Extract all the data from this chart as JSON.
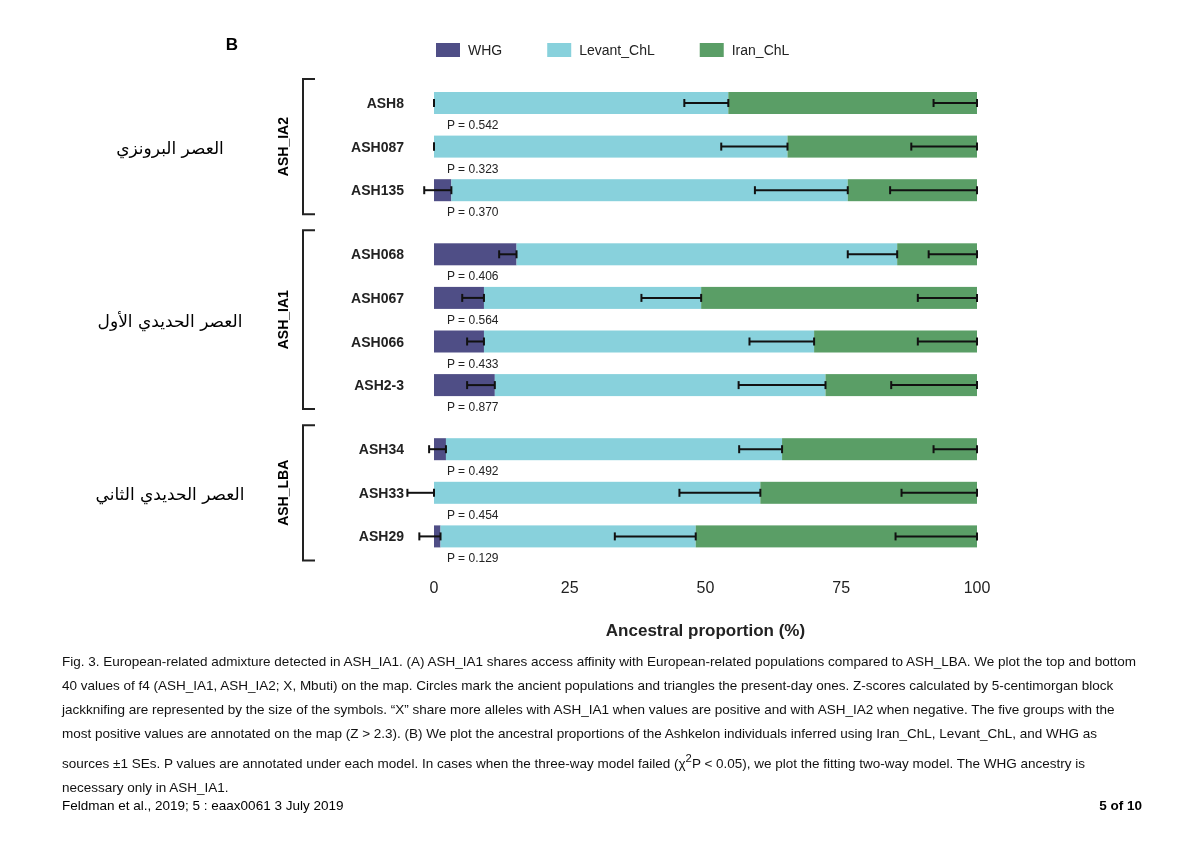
{
  "chart_data": {
    "type": "bar",
    "orientation": "horizontal",
    "stacked": true,
    "categories": [
      "ASH8",
      "ASH087",
      "ASH135",
      "ASH068",
      "ASH067",
      "ASH066",
      "ASH2-3",
      "ASH34",
      "ASH33",
      "ASH29"
    ],
    "series": [
      {
        "name": "WHG",
        "color": "#4f4e86",
        "values": [
          0,
          0,
          3.2,
          15.2,
          9.2,
          9.2,
          11.2,
          2.2,
          0,
          1.2
        ],
        "errors": [
          [
            0,
            0
          ],
          [
            0,
            0
          ],
          [
            -1.8,
            3.2
          ],
          [
            12.0,
            15.2
          ],
          [
            5.2,
            9.2
          ],
          [
            6.1,
            9.2
          ],
          [
            6.1,
            11.2
          ],
          [
            -0.9,
            2.2
          ],
          [
            -4.9,
            0
          ],
          [
            -2.7,
            1.2
          ]
        ]
      },
      {
        "name": "Levant_ChL",
        "color": "#88d1dc",
        "values": [
          54.2,
          65.1,
          73.0,
          70.1,
          40.0,
          60.8,
          60.9,
          61.9,
          60.1,
          47.0
        ],
        "errors": [
          [
            46.1,
            54.2
          ],
          [
            52.9,
            65.1
          ],
          [
            59.1,
            76.2
          ],
          [
            76.2,
            85.3
          ],
          [
            38.2,
            49.2
          ],
          [
            58.1,
            70.0
          ],
          [
            56.1,
            72.1
          ],
          [
            56.2,
            64.1
          ],
          [
            45.2,
            60.1
          ],
          [
            33.3,
            48.2
          ]
        ]
      },
      {
        "name": "Iran_ChL",
        "color": "#5a9e66",
        "values": [
          45.8,
          34.9,
          23.8,
          14.7,
          50.8,
          30.0,
          27.9,
          35.9,
          39.9,
          51.8
        ],
        "errors": [
          [
            92.0,
            100
          ],
          [
            87.9,
            100
          ],
          [
            84.0,
            100
          ],
          [
            91.1,
            100
          ],
          [
            89.1,
            100
          ],
          [
            89.1,
            100
          ],
          [
            84.2,
            100
          ],
          [
            92.0,
            100
          ],
          [
            86.1,
            100
          ],
          [
            85.0,
            100
          ]
        ]
      }
    ],
    "xlim": [
      0,
      100
    ],
    "xticks": [
      0,
      25,
      50,
      75,
      100
    ],
    "xlabel": "Ancestral proportion (%)",
    "legend": "top",
    "grid": false,
    "annotations": [
      "B",
      "ASH_IA2",
      "ASH_IA1",
      "ASH_LBA",
      "العصر البرونزي",
      "العصر الحديدي الأول",
      "العصر الحديدي الثاني",
      "P = 0.542",
      "P = 0.323",
      "P = 0.370",
      "P = 0.406",
      "P = 0.564",
      "P = 0.433",
      "P = 0.877",
      "P = 0.492",
      "P = 0.454",
      "P = 0.129",
      "Fig. 3. European-related admixture detected in ASH_IA1. (A) ASH_IA1 shares access affinity with European-related populations compared to ASH_LBA. We plot the top and bottom 40 values of f4 (ASH_IA1, ASH_IA2; X, Mbuti) on the map. Circles mark the ancient populations and triangles the present-day ones. Z-scores calculated by 5-centimorgan block jackknifing are represented by the size of the symbols. “X” share more alleles with ASH_IA1 when values are positive and with ASH_IA2 when negative. The five groups with the most positive values are annotated on the map (Z > 2.3). (B) We plot the ancestral proportions of the Ashkelon individuals inferred using Iran_ChL, Levant_ChL, and WHG as sources ±1 SEs. P values are annotated under each model. In cases when the three-way model failed (χ$^{2}$P < 0.05), we plot the fitting two-way model. The WHG ancestry is necessary only in ASH_IA1.",
      "Feldman et al., 2019; 5 : eaax0061   3 July 2019",
      "5 of 10"
    ]
  }
}
